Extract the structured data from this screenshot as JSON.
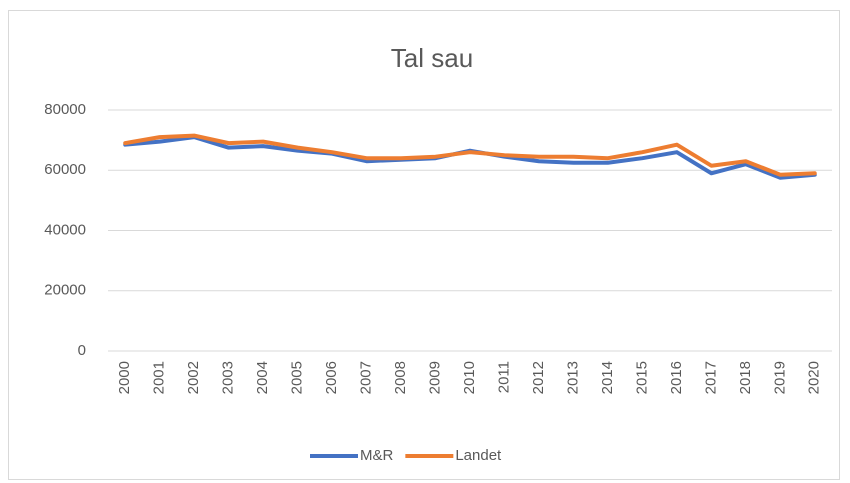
{
  "chart_data": {
    "type": "line",
    "title": "Tal sau",
    "categories": [
      "2000",
      "2001",
      "2002",
      "2003",
      "2004",
      "2005",
      "2006",
      "2007",
      "2008",
      "2009",
      "2010",
      "2011",
      "2012",
      "2013",
      "2014",
      "2015",
      "2016",
      "2017",
      "2018",
      "2019",
      "2020"
    ],
    "series": [
      {
        "name": "M&R",
        "color": "#4472c4",
        "values": [
          68500,
          69500,
          71000,
          67500,
          68000,
          66500,
          65500,
          63000,
          63500,
          64000,
          66500,
          64500,
          63000,
          62500,
          62500,
          64000,
          66000,
          59000,
          62000,
          57500,
          58500
        ]
      },
      {
        "name": "Landet",
        "color": "#ed7d31",
        "values": [
          69000,
          71000,
          71500,
          69000,
          69500,
          67500,
          66000,
          64000,
          64000,
          64500,
          66000,
          65000,
          64500,
          64500,
          64000,
          66000,
          68500,
          61500,
          63000,
          58500,
          59000
        ]
      }
    ],
    "ylim": [
      0,
      80000
    ],
    "yticks": [
      0,
      20000,
      40000,
      60000,
      80000
    ],
    "grid": true,
    "legend": "bottom"
  }
}
